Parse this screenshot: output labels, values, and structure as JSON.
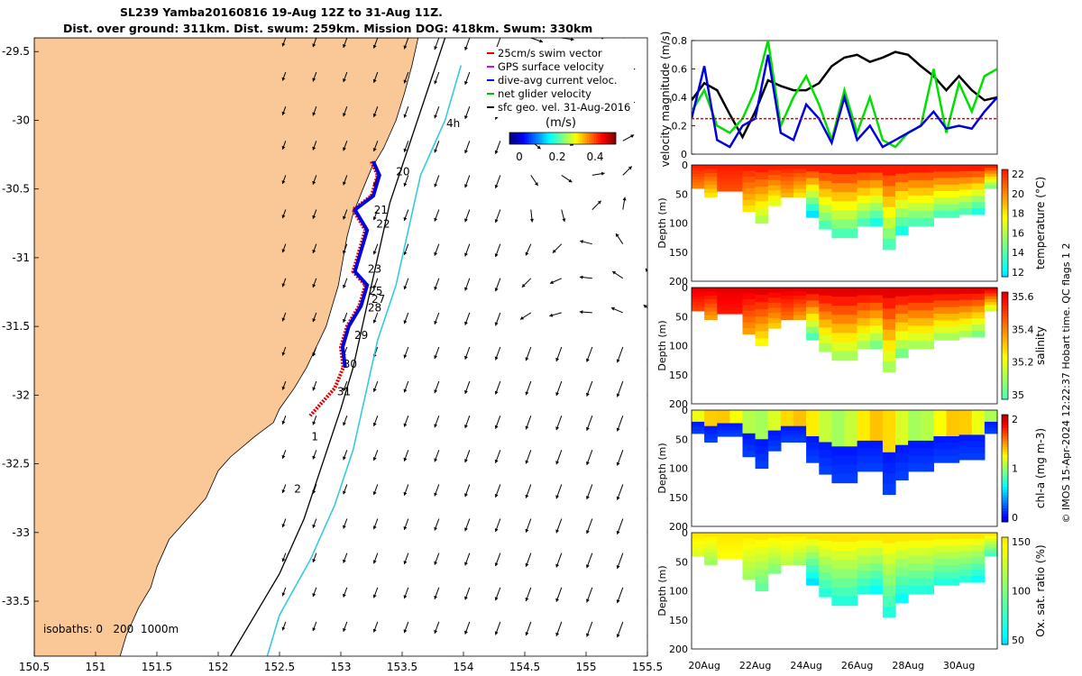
{
  "title": {
    "line1": "SL239 Yamba20160816 19-Aug 12Z to 31-Aug 11Z.",
    "line2": "Dist. over ground: 311km. Dist. swum: 259km. Mission DOG: 418km. Swum: 330km"
  },
  "map": {
    "lon_ticks": [
      "150.5",
      "151",
      "151.5",
      "152",
      "152.5",
      "153",
      "153.5",
      "154",
      "154.5",
      "155",
      "155.5"
    ],
    "lat_ticks": [
      "-29.5",
      "-30",
      "-30.5",
      "-31",
      "-31.5",
      "-32",
      "-32.5",
      "-33",
      "-33.5"
    ],
    "xlim": [
      150.5,
      155.5
    ],
    "ylim": [
      -33.9,
      -29.4
    ],
    "land_color": "#FAC896",
    "legend": [
      {
        "label": "25cm/s swim vector",
        "color": "#E00000"
      },
      {
        "label": "GPS surface velocity",
        "color": "#E000E0"
      },
      {
        "label": "dive-avg current veloc.",
        "color": "#0000E0"
      },
      {
        "label": "net glider velocity",
        "color": "#00C000"
      },
      {
        "label": "sfc geo. vel. 31-Aug-2016",
        "color": "#000000"
      }
    ],
    "colorbar": {
      "unit": "(m/s)",
      "ticks": [
        "0",
        "0.2",
        "0.4"
      ],
      "range": [
        0,
        0.5
      ]
    },
    "isobaths_label": "isobaths: 0   200  1000m",
    "track_labels": [
      {
        "text": "20",
        "lon": 153.45,
        "lat": -30.4
      },
      {
        "text": "21",
        "lon": 153.27,
        "lat": -30.68
      },
      {
        "text": "22",
        "lon": 153.29,
        "lat": -30.78
      },
      {
        "text": "23",
        "lon": 153.22,
        "lat": -31.11
      },
      {
        "text": "25",
        "lon": 153.23,
        "lat": -31.27
      },
      {
        "text": "27",
        "lon": 153.25,
        "lat": -31.33
      },
      {
        "text": "28",
        "lon": 153.22,
        "lat": -31.39
      },
      {
        "text": "29",
        "lon": 153.11,
        "lat": -31.59
      },
      {
        "text": "30",
        "lon": 153.02,
        "lat": -31.8
      },
      {
        "text": "31",
        "lon": 152.97,
        "lat": -32.0
      },
      {
        "text": "1",
        "lon": 152.76,
        "lat": -32.33
      },
      {
        "text": "2",
        "lon": 152.62,
        "lat": -32.71
      },
      {
        "text": "4h",
        "lon": 153.86,
        "lat": -30.05
      }
    ]
  },
  "velocity_panel": {
    "ylabel": "velocity magnitude (m/s)",
    "yticks": [
      "0",
      "0.2",
      "0.4",
      "0.6",
      "0.8"
    ]
  },
  "sections": [
    {
      "ylabel": "Depth (m)",
      "cb_label": "temperature (°C)",
      "cb_ticks": [
        "12",
        "14",
        "16",
        "18",
        "20",
        "22"
      ]
    },
    {
      "ylabel": "Depth (m)",
      "cb_label": "salinity",
      "cb_ticks": [
        "35",
        "35.2",
        "35.4",
        "35.6"
      ]
    },
    {
      "ylabel": "Depth (m)",
      "cb_label": "chl-a (mg m-3)",
      "cb_ticks": [
        "0",
        "1",
        "2"
      ]
    },
    {
      "ylabel": "Depth (m)",
      "cb_label": "Ox. sat. ratio (%)",
      "cb_ticks": [
        "50",
        "100",
        "150"
      ]
    }
  ],
  "depth_ticks": [
    "0",
    "50",
    "100",
    "150",
    "200"
  ],
  "time_ticks": [
    "20Aug",
    "22Aug",
    "24Aug",
    "26Aug",
    "28Aug",
    "30Aug"
  ],
  "credit": "© IMOS 15-Apr-2024 12:22:37 Hobart time. QC flags 1  2",
  "chart_data": [
    {
      "type": "line",
      "title": "",
      "xlabel": "",
      "ylabel": "velocity magnitude (m/s)",
      "ylim": [
        0,
        0.8
      ],
      "x": [
        "19.5",
        "20",
        "20.5",
        "21",
        "21.5",
        "22",
        "22.5",
        "23",
        "23.5",
        "24",
        "24.5",
        "25",
        "25.5",
        "26",
        "26.5",
        "27",
        "27.5",
        "28",
        "28.5",
        "29",
        "29.5",
        "30",
        "30.5",
        "31",
        "31.5"
      ],
      "series": [
        {
          "color": "#000000",
          "values": [
            0.38,
            0.5,
            0.45,
            0.28,
            0.12,
            0.3,
            0.52,
            0.48,
            0.45,
            0.45,
            0.5,
            0.62,
            0.68,
            0.7,
            0.65,
            0.68,
            0.72,
            0.7,
            0.62,
            0.55,
            0.45,
            0.55,
            0.45,
            0.38,
            0.4
          ]
        },
        {
          "color": "#00E000",
          "values": [
            0.3,
            0.45,
            0.2,
            0.15,
            0.25,
            0.45,
            0.8,
            0.2,
            0.4,
            0.55,
            0.35,
            0.1,
            0.45,
            0.15,
            0.4,
            0.1,
            0.05,
            0.15,
            0.2,
            0.6,
            0.15,
            0.5,
            0.3,
            0.55,
            0.6
          ]
        },
        {
          "color": "#0000E0",
          "values": [
            0.25,
            0.62,
            0.1,
            0.05,
            0.2,
            0.25,
            0.7,
            0.15,
            0.1,
            0.35,
            0.25,
            0.08,
            0.4,
            0.1,
            0.2,
            0.05,
            0.1,
            0.15,
            0.2,
            0.3,
            0.18,
            0.2,
            0.18,
            0.3,
            0.4
          ]
        },
        {
          "color": "#E00000",
          "values": [
            0.25,
            0.25,
            0.25,
            0.25,
            0.25,
            0.25,
            0.25,
            0.25,
            0.25,
            0.25,
            0.25,
            0.25,
            0.25,
            0.25,
            0.25,
            0.25,
            0.25,
            0.25,
            0.25,
            0.25,
            0.25,
            0.25,
            0.25,
            0.25,
            0.25
          ]
        }
      ]
    },
    {
      "type": "heatmap",
      "ylabel": "Depth (m)",
      "ylim": [
        200,
        0
      ],
      "x": [
        "19.5",
        "20",
        "20.5",
        "21",
        "21.5",
        "22",
        "22.5",
        "23",
        "23.5",
        "24",
        "24.5",
        "25",
        "25.5",
        "26",
        "26.5",
        "27",
        "27.5",
        "28",
        "28.5",
        "29",
        "29.5",
        "30",
        "30.5",
        "31",
        "31.5"
      ],
      "max_depth": [
        40,
        100,
        55,
        45,
        80,
        100,
        105,
        70,
        55,
        90,
        110,
        140,
        125,
        160,
        105,
        145,
        165,
        120,
        105,
        115,
        90,
        110,
        85,
        85,
        40
      ],
      "surface_value": [
        21,
        21,
        20.5,
        20.5,
        21,
        21,
        20.5,
        20.5,
        21,
        21,
        20,
        20,
        20,
        20,
        20.5,
        20,
        20.5,
        20,
        20,
        20,
        20,
        20,
        20.5,
        20.5,
        21
      ],
      "bottom_value": [
        20,
        19,
        20,
        20,
        19,
        18,
        18,
        19,
        19,
        16,
        16,
        16,
        16,
        16,
        16,
        16,
        16,
        16,
        16,
        16,
        16,
        16,
        16,
        17,
        19
      ]
    }
  ]
}
